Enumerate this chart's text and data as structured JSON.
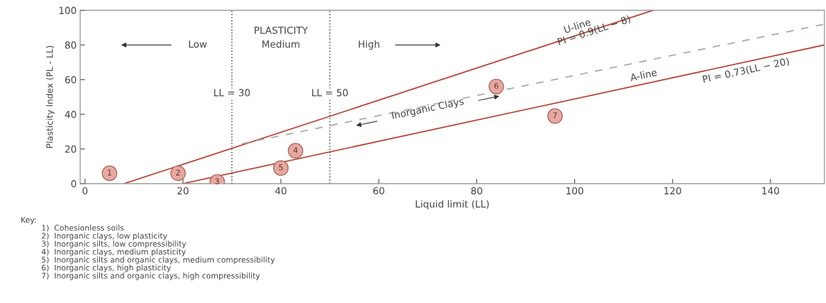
{
  "chart_data": {
    "type": "line",
    "xlabel": "Liquid limit (LL)",
    "ylabel": "Plasticity Index (PL - LL)",
    "xlim": [
      -1,
      151
    ],
    "ylim": [
      0,
      100
    ],
    "xticks": [
      0,
      20,
      40,
      60,
      80,
      100,
      120,
      140
    ],
    "yticks": [
      0,
      20,
      40,
      60,
      80,
      100
    ],
    "grid": false,
    "legend": false,
    "series": [
      {
        "name": "U-line",
        "color": "#b5473a",
        "x": [
          8,
          116
        ],
        "values": [
          0,
          100
        ],
        "line_style": "solid"
      },
      {
        "name": "A-line",
        "color": "#b5473a",
        "x": [
          20,
          151
        ],
        "values": [
          0,
          80
        ],
        "line_style": "solid"
      },
      {
        "color": "#aaaaaa",
        "x": [
          32,
          151
        ],
        "values": [
          23,
          92
        ],
        "line_style": "dashed"
      },
      {
        "type": "scatter",
        "color": "#e8a8a0",
        "x": [
          5,
          19,
          27,
          40,
          43,
          84,
          96
        ],
        "values": [
          6,
          6,
          1,
          9,
          19,
          56,
          39
        ],
        "marker": "circle"
      }
    ],
    "ref_lines": [
      {
        "axis": "x",
        "value": 30,
        "label": "LL = 30",
        "line_style": "dotted",
        "color": "#555555"
      },
      {
        "axis": "x",
        "value": 50,
        "label": "LL = 50",
        "line_style": "dotted",
        "color": "#555555"
      }
    ],
    "annotations": [
      {
        "text": "1",
        "x": 5,
        "y": 6
      },
      {
        "text": "2",
        "x": 19,
        "y": 6
      },
      {
        "text": "3",
        "x": 27,
        "y": 1
      },
      {
        "text": "5",
        "x": 40,
        "y": 9
      },
      {
        "text": "4",
        "x": 43,
        "y": 19
      },
      {
        "text": "6",
        "x": 84,
        "y": 56
      },
      {
        "text": "7",
        "x": 96,
        "y": 39
      },
      "PLASTICITY",
      "Low",
      "Medium",
      "High",
      "Inorganic Clays",
      "PI = 0.9(LL − 8)",
      "PI = 0.73(LL − 20)",
      "Key:",
      "1)  Cohesionless soils",
      "2)  Inorganic clays, low plasticity",
      "3)  Inorganic silts, low compressibility",
      "4)  Inorganic clays, medium plasticity",
      "5)  Inorganic silts and organic clays, medium compressibility",
      "6)  Inorganic clays, high plasticity",
      "7)  Inorganic silts and organic clays, high compressibility"
    ]
  }
}
